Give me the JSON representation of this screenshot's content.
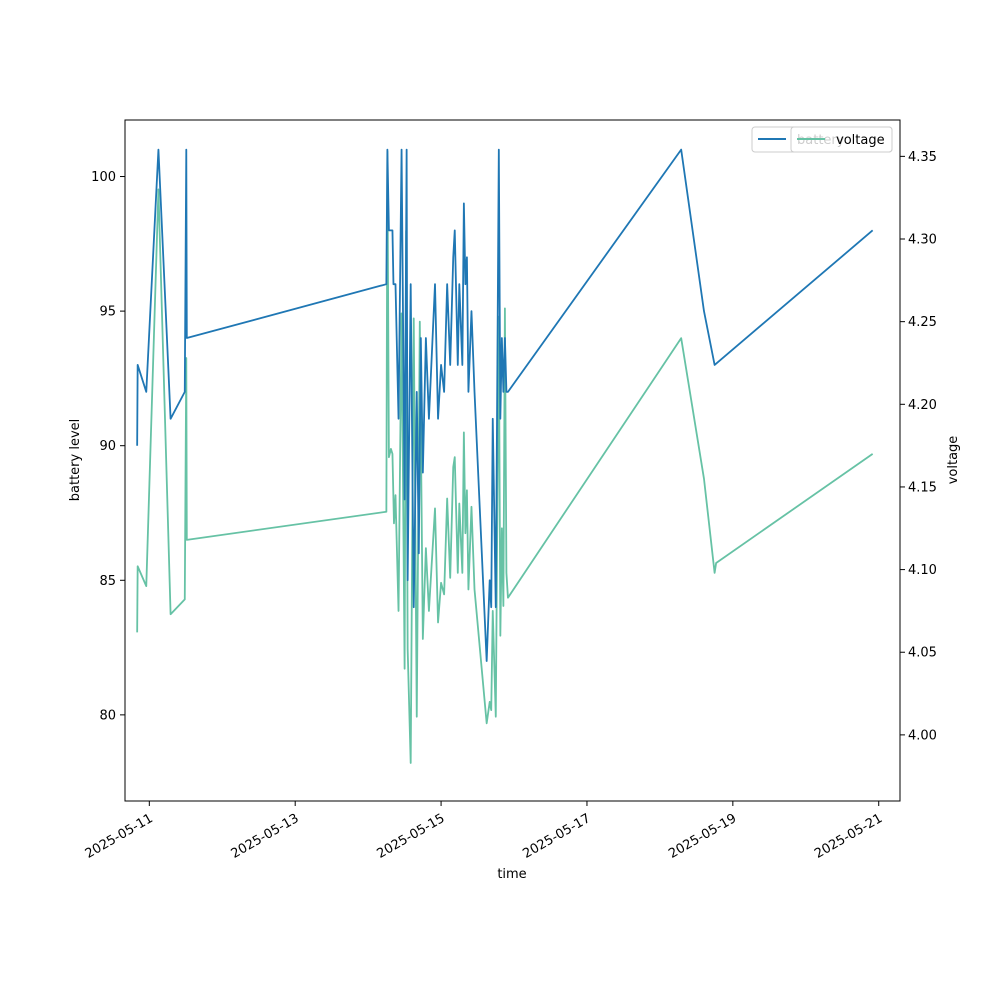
{
  "chart_data": {
    "type": "line",
    "xlabel": "time",
    "ylabel_left": "battery level",
    "ylabel_right": "voltage",
    "x_axis": {
      "type": "date",
      "range": [
        "2025-05-10T16:00",
        "2025-05-21T07:00"
      ],
      "ticks": [
        "2025-05-11",
        "2025-05-13",
        "2025-05-15",
        "2025-05-17",
        "2025-05-19",
        "2025-05-21"
      ]
    },
    "y_left": {
      "range": [
        76.8,
        102.1
      ],
      "ticks": [
        80,
        85,
        90,
        95,
        100
      ]
    },
    "y_right": {
      "range": [
        3.96,
        4.372
      ],
      "ticks": [
        "4.00",
        "4.05",
        "4.10",
        "4.15",
        "4.20",
        "4.25",
        "4.30",
        "4.35"
      ]
    },
    "grid": false,
    "legend_placement": "top-right",
    "colors": {
      "battery": "#1f77b4",
      "voltage": "#66c2a5"
    },
    "series": [
      {
        "name": "battery",
        "axis": "left",
        "color": "#1f77b4",
        "points": [
          [
            "2025-05-10T20:00",
            90
          ],
          [
            "2025-05-10T20:10",
            93
          ],
          [
            "2025-05-10T23:00",
            92
          ],
          [
            "2025-05-11T03:00",
            101
          ],
          [
            "2025-05-11T07:00",
            91
          ],
          [
            "2025-05-11T11:40",
            92
          ],
          [
            "2025-05-11T12:10",
            101
          ],
          [
            "2025-05-11T12:20",
            94
          ],
          [
            "2025-05-14T06:00",
            96
          ],
          [
            "2025-05-14T06:20",
            101
          ],
          [
            "2025-05-14T06:50",
            98
          ],
          [
            "2025-05-14T08:00",
            98
          ],
          [
            "2025-05-14T08:20",
            96
          ],
          [
            "2025-05-14T09:00",
            96
          ],
          [
            "2025-05-14T10:00",
            91
          ],
          [
            "2025-05-14T11:00",
            101
          ],
          [
            "2025-05-14T12:00",
            88
          ],
          [
            "2025-05-14T12:40",
            101
          ],
          [
            "2025-05-14T13:00",
            85
          ],
          [
            "2025-05-14T14:00",
            96
          ],
          [
            "2025-05-14T15:00",
            84
          ],
          [
            "2025-05-14T16:00",
            92
          ],
          [
            "2025-05-14T16:40",
            86
          ],
          [
            "2025-05-14T17:20",
            94
          ],
          [
            "2025-05-14T18:00",
            89
          ],
          [
            "2025-05-14T19:00",
            94
          ],
          [
            "2025-05-14T20:00",
            91
          ],
          [
            "2025-05-14T22:00",
            96
          ],
          [
            "2025-05-14T23:00",
            91
          ],
          [
            "2025-05-15T00:00",
            93
          ],
          [
            "2025-05-15T01:00",
            92
          ],
          [
            "2025-05-15T02:00",
            96
          ],
          [
            "2025-05-15T03:00",
            93
          ],
          [
            "2025-05-15T04:00",
            97
          ],
          [
            "2025-05-15T04:30",
            98
          ],
          [
            "2025-05-15T05:30",
            93
          ],
          [
            "2025-05-15T06:00",
            96
          ],
          [
            "2025-05-15T07:00",
            93
          ],
          [
            "2025-05-15T07:30",
            99
          ],
          [
            "2025-05-15T08:00",
            96
          ],
          [
            "2025-05-15T08:30",
            97
          ],
          [
            "2025-05-15T09:00",
            92
          ],
          [
            "2025-05-15T10:00",
            95
          ],
          [
            "2025-05-15T11:00",
            92
          ],
          [
            "2025-05-15T15:00",
            82
          ],
          [
            "2025-05-15T16:00",
            85
          ],
          [
            "2025-05-15T16:30",
            84
          ],
          [
            "2025-05-15T17:00",
            91
          ],
          [
            "2025-05-15T18:00",
            84
          ],
          [
            "2025-05-15T19:00",
            101
          ],
          [
            "2025-05-15T19:30",
            91
          ],
          [
            "2025-05-15T20:00",
            94
          ],
          [
            "2025-05-15T20:30",
            92
          ],
          [
            "2025-05-15T21:00",
            94
          ],
          [
            "2025-05-15T21:30",
            92
          ],
          [
            "2025-05-15T22:00",
            92
          ],
          [
            "2025-05-18T07:00",
            101
          ],
          [
            "2025-05-18T14:30",
            95
          ],
          [
            "2025-05-18T18:00",
            93
          ],
          [
            "2025-05-20T22:00",
            98
          ]
        ]
      },
      {
        "name": "voltage",
        "axis": "right",
        "color": "#66c2a5",
        "points": [
          [
            "2025-05-10T20:00",
            4.062
          ],
          [
            "2025-05-10T20:10",
            4.102
          ],
          [
            "2025-05-10T23:00",
            4.09
          ],
          [
            "2025-05-11T03:00",
            4.33
          ],
          [
            "2025-05-11T07:00",
            4.073
          ],
          [
            "2025-05-11T11:40",
            4.082
          ],
          [
            "2025-05-11T12:10",
            4.228
          ],
          [
            "2025-05-11T12:20",
            4.118
          ],
          [
            "2025-05-14T06:00",
            4.135
          ],
          [
            "2025-05-14T06:20",
            4.353
          ],
          [
            "2025-05-14T06:50",
            4.168
          ],
          [
            "2025-05-14T07:30",
            4.173
          ],
          [
            "2025-05-14T08:00",
            4.17
          ],
          [
            "2025-05-14T08:30",
            4.128
          ],
          [
            "2025-05-14T09:00",
            4.145
          ],
          [
            "2025-05-14T10:00",
            4.075
          ],
          [
            "2025-05-14T11:00",
            4.255
          ],
          [
            "2025-05-14T12:00",
            4.04
          ],
          [
            "2025-05-14T12:30",
            4.305
          ],
          [
            "2025-05-14T13:00",
            4.052
          ],
          [
            "2025-05-14T14:00",
            3.983
          ],
          [
            "2025-05-14T15:00",
            4.252
          ],
          [
            "2025-05-14T16:00",
            4.011
          ],
          [
            "2025-05-14T17:00",
            4.25
          ],
          [
            "2025-05-14T18:00",
            4.058
          ],
          [
            "2025-05-14T19:00",
            4.113
          ],
          [
            "2025-05-14T20:00",
            4.075
          ],
          [
            "2025-05-14T22:00",
            4.137
          ],
          [
            "2025-05-14T23:00",
            4.068
          ],
          [
            "2025-05-15T00:00",
            4.092
          ],
          [
            "2025-05-15T01:00",
            4.085
          ],
          [
            "2025-05-15T02:00",
            4.143
          ],
          [
            "2025-05-15T03:00",
            4.095
          ],
          [
            "2025-05-15T04:00",
            4.162
          ],
          [
            "2025-05-15T04:30",
            4.168
          ],
          [
            "2025-05-15T05:30",
            4.098
          ],
          [
            "2025-05-15T06:00",
            4.14
          ],
          [
            "2025-05-15T07:00",
            4.098
          ],
          [
            "2025-05-15T07:30",
            4.183
          ],
          [
            "2025-05-15T08:00",
            4.122
          ],
          [
            "2025-05-15T08:30",
            4.148
          ],
          [
            "2025-05-15T09:00",
            4.088
          ],
          [
            "2025-05-15T10:00",
            4.138
          ],
          [
            "2025-05-15T11:00",
            4.088
          ],
          [
            "2025-05-15T15:00",
            4.007
          ],
          [
            "2025-05-15T16:00",
            4.02
          ],
          [
            "2025-05-15T16:30",
            4.015
          ],
          [
            "2025-05-15T17:00",
            4.075
          ],
          [
            "2025-05-15T18:00",
            4.011
          ],
          [
            "2025-05-15T19:00",
            4.253
          ],
          [
            "2025-05-15T19:30",
            4.06
          ],
          [
            "2025-05-15T20:00",
            4.125
          ],
          [
            "2025-05-15T20:30",
            4.078
          ],
          [
            "2025-05-15T21:00",
            4.258
          ],
          [
            "2025-05-15T21:30",
            4.098
          ],
          [
            "2025-05-15T22:00",
            4.083
          ],
          [
            "2025-05-18T07:00",
            4.24
          ],
          [
            "2025-05-18T14:30",
            4.155
          ],
          [
            "2025-05-18T18:00",
            4.098
          ],
          [
            "2025-05-18T18:30",
            4.104
          ],
          [
            "2025-05-20T22:00",
            4.17
          ]
        ]
      }
    ]
  }
}
